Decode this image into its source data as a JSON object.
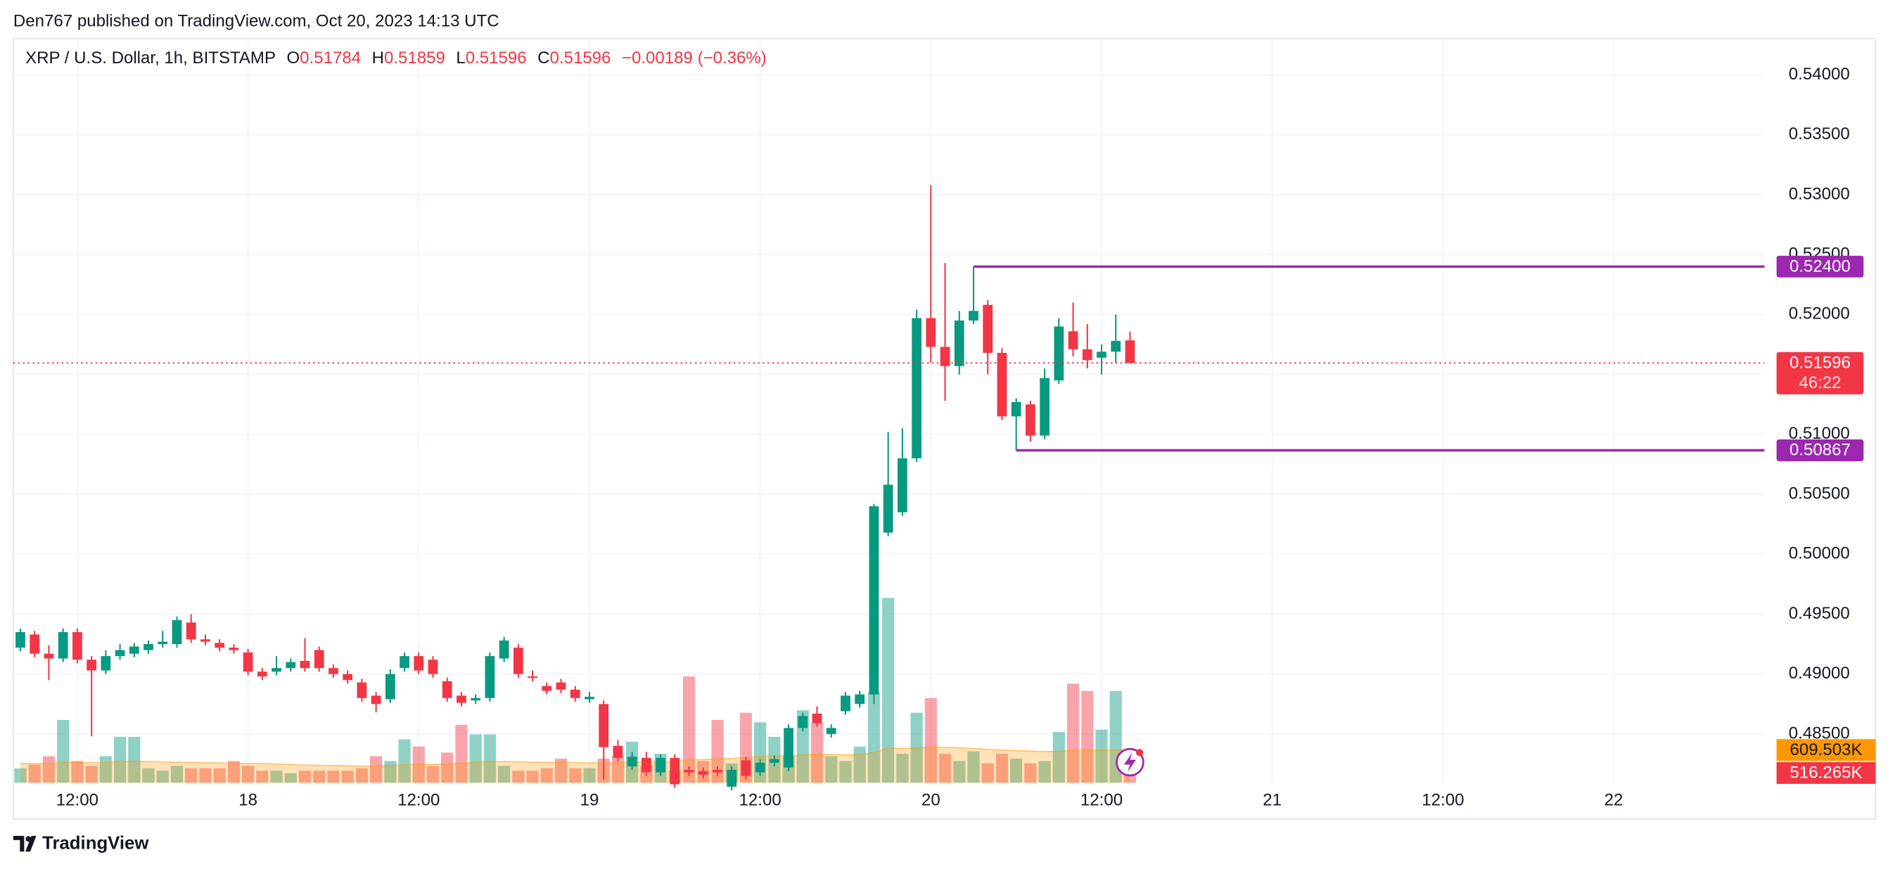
{
  "header": {
    "published": "Den767 published on TradingView.com, Oct 20, 2023 14:13 UTC"
  },
  "legend": {
    "symbol": "XRP / U.S. Dollar, 1h, BITSTAMP",
    "o_label": "O",
    "open": 0.51784,
    "h_label": "H",
    "high": 0.51859,
    "l_label": "L",
    "low": 0.51596,
    "c_label": "C",
    "close": 0.51596,
    "change": "−0.00189 (−0.36%)"
  },
  "chart_data": {
    "type": "candlestick",
    "x": [
      -16,
      -15,
      -14,
      -13,
      -12,
      -11,
      -10,
      -9,
      -8,
      -7,
      -6,
      -5,
      -4,
      -3,
      -2,
      -1,
      0,
      1,
      2,
      3,
      4,
      5,
      6,
      7,
      8,
      9,
      10,
      11,
      12,
      13,
      14,
      15,
      16,
      17,
      18,
      19,
      20,
      21,
      22,
      23,
      24,
      25,
      26,
      27,
      28,
      29,
      30,
      31,
      32,
      33,
      34,
      35,
      36,
      37,
      38,
      39,
      40,
      41,
      42,
      43,
      44,
      45,
      46,
      47,
      48,
      49,
      50,
      51,
      52,
      53,
      54,
      55,
      56,
      57,
      58,
      59,
      60,
      61,
      62
    ],
    "open": [
      0.4922,
      0.4933,
      0.4917,
      0.4913,
      0.4935,
      0.4912,
      0.4903,
      0.4915,
      0.4917,
      0.492,
      0.4925,
      0.4925,
      0.4943,
      0.4929,
      0.4926,
      0.4922,
      0.4918,
      0.4902,
      0.4902,
      0.4905,
      0.4911,
      0.492,
      0.4905,
      0.49,
      0.4893,
      0.4882,
      0.4879,
      0.4905,
      0.4915,
      0.4912,
      0.4894,
      0.4882,
      0.4878,
      0.488,
      0.4913,
      0.4922,
      0.4898,
      0.489,
      0.4893,
      0.4887,
      0.4879,
      0.4875,
      0.484,
      0.4823,
      0.483,
      0.4818,
      0.483,
      0.482,
      0.4819,
      0.482,
      0.4806,
      0.4828,
      0.4818,
      0.4826,
      0.4822,
      0.4855,
      0.4867,
      0.485,
      0.4869,
      0.4875,
      0.4883,
      0.5018,
      0.5035,
      0.508,
      0.5197,
      0.5173,
      0.5157,
      0.5195,
      0.5208,
      0.5168,
      0.5115,
      0.5125,
      0.5099,
      0.5145,
      0.5186,
      0.5171,
      0.5164,
      0.5169,
      0.51784
    ],
    "high": [
      0.4938,
      0.4936,
      0.4924,
      0.4938,
      0.4938,
      0.4915,
      0.492,
      0.4925,
      0.4926,
      0.4928,
      0.4936,
      0.4948,
      0.495,
      0.4933,
      0.4929,
      0.4925,
      0.4921,
      0.4905,
      0.4915,
      0.4913,
      0.493,
      0.4923,
      0.4908,
      0.4903,
      0.4896,
      0.4885,
      0.4904,
      0.4918,
      0.4918,
      0.4915,
      0.4897,
      0.4885,
      0.4883,
      0.4918,
      0.4931,
      0.4925,
      0.4903,
      0.4893,
      0.4896,
      0.489,
      0.4885,
      0.4878,
      0.4845,
      0.4835,
      0.4835,
      0.4833,
      0.4833,
      0.4823,
      0.4822,
      0.4823,
      0.4823,
      0.4831,
      0.4829,
      0.4832,
      0.4858,
      0.4868,
      0.4873,
      0.4858,
      0.4885,
      0.4886,
      0.5042,
      0.5102,
      0.5105,
      0.5204,
      0.5308,
      0.5243,
      0.5203,
      0.524,
      0.5212,
      0.5172,
      0.513,
      0.5128,
      0.5155,
      0.5197,
      0.521,
      0.5192,
      0.5175,
      0.52,
      0.51859
    ],
    "low": [
      0.4919,
      0.4914,
      0.4895,
      0.491,
      0.4909,
      0.4848,
      0.49,
      0.4912,
      0.4914,
      0.4917,
      0.4922,
      0.4922,
      0.4926,
      0.4924,
      0.4919,
      0.4917,
      0.4899,
      0.4895,
      0.4899,
      0.4902,
      0.4902,
      0.4902,
      0.4897,
      0.4892,
      0.4877,
      0.4868,
      0.4876,
      0.4902,
      0.49,
      0.4897,
      0.4877,
      0.4873,
      0.4875,
      0.4877,
      0.491,
      0.4897,
      0.4894,
      0.4883,
      0.4884,
      0.4877,
      0.4876,
      0.4812,
      0.4827,
      0.482,
      0.4815,
      0.4815,
      0.4805,
      0.4815,
      0.4813,
      0.4815,
      0.4803,
      0.4812,
      0.4815,
      0.4823,
      0.4819,
      0.4852,
      0.4856,
      0.4847,
      0.4866,
      0.4872,
      0.4875,
      0.5015,
      0.5032,
      0.5077,
      0.516,
      0.5128,
      0.515,
      0.5192,
      0.515,
      0.5112,
      0.5087,
      0.5094,
      0.5096,
      0.5142,
      0.5165,
      0.5155,
      0.515,
      0.516,
      0.51596
    ],
    "close": [
      0.4935,
      0.4917,
      0.4913,
      0.4935,
      0.4912,
      0.4903,
      0.4915,
      0.492,
      0.4923,
      0.4925,
      0.4927,
      0.4945,
      0.4929,
      0.4927,
      0.4922,
      0.492,
      0.4902,
      0.4898,
      0.4905,
      0.491,
      0.4905,
      0.4905,
      0.49,
      0.4895,
      0.488,
      0.4875,
      0.49,
      0.4915,
      0.4903,
      0.49,
      0.488,
      0.4876,
      0.488,
      0.4915,
      0.4928,
      0.49,
      0.4897,
      0.4886,
      0.4887,
      0.488,
      0.4881,
      0.4839,
      0.483,
      0.4831,
      0.4818,
      0.483,
      0.4808,
      0.4818,
      0.4816,
      0.4818,
      0.482,
      0.4815,
      0.4826,
      0.4829,
      0.4855,
      0.4865,
      0.4859,
      0.4855,
      0.4882,
      0.4883,
      0.504,
      0.5058,
      0.508,
      0.5197,
      0.5173,
      0.5157,
      0.5195,
      0.5203,
      0.5168,
      0.5115,
      0.5127,
      0.5099,
      0.5147,
      0.519,
      0.5171,
      0.5162,
      0.5169,
      0.5178,
      0.51596
    ],
    "up_color": "#089981",
    "down_color": "#f23645",
    "xlim": [
      -16.5,
      106.6
    ],
    "xticks": [
      {
        "value": -12,
        "label": "12:00"
      },
      {
        "value": 0,
        "label": "18"
      },
      {
        "value": 12,
        "label": "12:00"
      },
      {
        "value": 24,
        "label": "19"
      },
      {
        "value": 36,
        "label": "12:00"
      },
      {
        "value": 48,
        "label": "20"
      },
      {
        "value": 60,
        "label": "12:00"
      },
      {
        "value": 72,
        "label": "21"
      },
      {
        "value": 84,
        "label": "12:00"
      },
      {
        "value": 96,
        "label": "22"
      }
    ],
    "ylim": [
      0.48093,
      0.54302
    ],
    "yticks": [
      {
        "value": 0.485,
        "label": "0.48500"
      },
      {
        "value": 0.49,
        "label": "0.49000"
      },
      {
        "value": 0.495,
        "label": "0.49500"
      },
      {
        "value": 0.5,
        "label": "0.50000"
      },
      {
        "value": 0.505,
        "label": "0.50500"
      },
      {
        "value": 0.51,
        "label": "0.51000"
      },
      {
        "value": 0.515,
        "label": "0.51500"
      },
      {
        "value": 0.52,
        "label": "0.52000"
      },
      {
        "value": 0.525,
        "label": "0.52500"
      },
      {
        "value": 0.53,
        "label": "0.53000"
      },
      {
        "value": 0.535,
        "label": "0.53500"
      },
      {
        "value": 0.54,
        "label": "0.54000"
      }
    ],
    "grid": true,
    "levels": [
      {
        "value": 0.524,
        "label": "0.52400",
        "x": 51,
        "color": "#9c27b0"
      },
      {
        "value": 0.50867,
        "x": 54,
        "color": "#9c27b0"
      }
    ],
    "last_price": {
      "value": 0.51596,
      "countdown": "46:22",
      "color": "#f23645"
    },
    "volume": {
      "ylim": [
        0,
        4500000
      ],
      "values": [
        270000,
        338000,
        495000,
        1170000,
        405000,
        315000,
        495000,
        855000,
        855000,
        270000,
        225000,
        315000,
        270000,
        270000,
        270000,
        405000,
        315000,
        225000,
        225000,
        180000,
        225000,
        225000,
        225000,
        225000,
        270000,
        495000,
        405000,
        810000,
        675000,
        315000,
        563000,
        1080000,
        900000,
        900000,
        315000,
        225000,
        225000,
        270000,
        450000,
        270000,
        270000,
        450000,
        495000,
        765000,
        315000,
        540000,
        225000,
        1980000,
        405000,
        1170000,
        360000,
        1305000,
        1125000,
        855000,
        495000,
        1350000,
        1125000,
        495000,
        405000,
        675000,
        1688000,
        3443000,
        540000,
        1305000,
        1575000,
        540000,
        405000,
        585000,
        360000,
        540000,
        450000,
        360000,
        405000,
        945000,
        1845000,
        1710000,
        990000,
        1710000,
        516265
      ],
      "value_labels": [
        null,
        null,
        null,
        null,
        null,
        null,
        null,
        null,
        null,
        null,
        null,
        null,
        null,
        null,
        null,
        null,
        null,
        null,
        null,
        null,
        null,
        null,
        null,
        null,
        null,
        null,
        null,
        null,
        null,
        null,
        null,
        null,
        null,
        null,
        null,
        null,
        null,
        null,
        null,
        null,
        null,
        null,
        null,
        null,
        null,
        null,
        null,
        null,
        null,
        null,
        null,
        null,
        null,
        null,
        null,
        null,
        null,
        null,
        null,
        null,
        null,
        null,
        null,
        null,
        null,
        null,
        null,
        null,
        null,
        null,
        null,
        null,
        null,
        null,
        null,
        null,
        null,
        null,
        "516.265K"
      ]
    },
    "volume_ma": {
      "color": "#ff9800",
      "values": [
        360000,
        355000,
        360000,
        380000,
        380000,
        375000,
        380000,
        390000,
        400000,
        395000,
        390000,
        385000,
        380000,
        375000,
        370000,
        365000,
        360000,
        355000,
        350000,
        340000,
        330000,
        325000,
        320000,
        315000,
        310000,
        315000,
        320000,
        335000,
        345000,
        345000,
        350000,
        365000,
        380000,
        395000,
        395000,
        390000,
        385000,
        380000,
        380000,
        375000,
        370000,
        370000,
        375000,
        385000,
        385000,
        390000,
        385000,
        430000,
        430000,
        450000,
        450000,
        470000,
        490000,
        500000,
        500000,
        520000,
        530000,
        525000,
        520000,
        525000,
        560000,
        650000,
        640000,
        650000,
        670000,
        660000,
        650000,
        640000,
        620000,
        610000,
        600000,
        590000,
        580000,
        585000,
        600000,
        610000,
        605000,
        610000,
        609503
      ],
      "value_labels": [
        null,
        null,
        null,
        null,
        null,
        null,
        null,
        null,
        null,
        null,
        null,
        null,
        null,
        null,
        null,
        null,
        null,
        null,
        null,
        null,
        null,
        null,
        null,
        null,
        null,
        null,
        null,
        null,
        null,
        null,
        null,
        null,
        null,
        null,
        null,
        null,
        null,
        null,
        null,
        null,
        null,
        null,
        null,
        null,
        null,
        null,
        null,
        null,
        null,
        null,
        null,
        null,
        null,
        null,
        null,
        null,
        null,
        null,
        null,
        null,
        null,
        null,
        null,
        null,
        null,
        null,
        null,
        null,
        null,
        null,
        null,
        null,
        null,
        null,
        null,
        null,
        null,
        null,
        "609.503K"
      ]
    }
  },
  "footer": {
    "brand": "TradingView"
  }
}
